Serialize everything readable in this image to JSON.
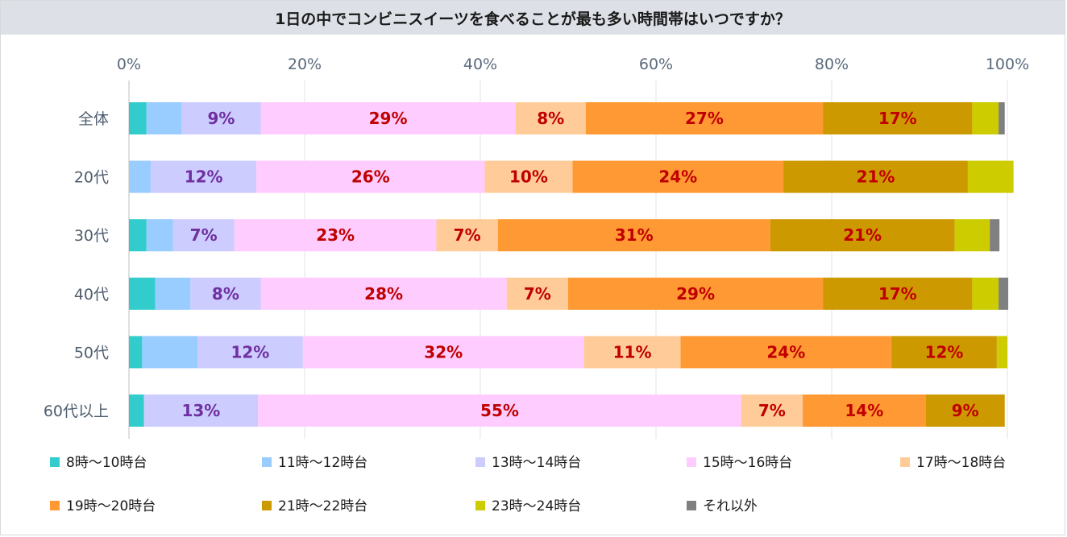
{
  "chart_data": {
    "type": "bar",
    "orientation": "horizontal-stacked-100",
    "title": "1日の中でコンビニスイーツを食べることが最も多い時間帯はいつですか？",
    "xlim": [
      0,
      100
    ],
    "ticks": [
      "0%",
      "20%",
      "40%",
      "60%",
      "80%",
      "100%"
    ],
    "categories": [
      "全体",
      "20代",
      "30代",
      "40代",
      "50代",
      "60代以上"
    ],
    "series": [
      {
        "name": "8時～10時台",
        "color": "#33cccc",
        "values": [
          2,
          0,
          2,
          3,
          1.5,
          1.7
        ],
        "labels": [
          "",
          "",
          "",
          "",
          "",
          ""
        ],
        "label_color": ""
      },
      {
        "name": "11時～12時台",
        "color": "#99ccff",
        "values": [
          4,
          2.5,
          3,
          4,
          6.3,
          0
        ],
        "labels": [
          "",
          "",
          "",
          "",
          "",
          ""
        ],
        "label_color": ""
      },
      {
        "name": "13時～14時台",
        "color": "#ccccff",
        "values": [
          9,
          12,
          7,
          8,
          12,
          13
        ],
        "labels": [
          "9%",
          "12%",
          "7%",
          "8%",
          "12%",
          "13%"
        ],
        "label_color": "#7030a0"
      },
      {
        "name": "15時～16時台",
        "color": "#ffccff",
        "values": [
          29,
          26,
          23,
          28,
          32,
          55
        ],
        "labels": [
          "29%",
          "26%",
          "23%",
          "28%",
          "32%",
          "55%"
        ],
        "label_color": "#c00000"
      },
      {
        "name": "17時～18時台",
        "color": "#ffcc99",
        "values": [
          8,
          10,
          7,
          7,
          11,
          7
        ],
        "labels": [
          "8%",
          "10%",
          "7%",
          "7%",
          "11%",
          "7%"
        ],
        "label_color": "#c00000"
      },
      {
        "name": "19時～20時台",
        "color": "#ff9933",
        "values": [
          27,
          24,
          31,
          29,
          24,
          14
        ],
        "labels": [
          "27%",
          "24%",
          "31%",
          "29%",
          "24%",
          "14%"
        ],
        "label_color": "#c00000"
      },
      {
        "name": "21時～22時台",
        "color": "#cc9900",
        "values": [
          17,
          21,
          21,
          17,
          12,
          9
        ],
        "labels": [
          "17%",
          "21%",
          "21%",
          "17%",
          "12%",
          "9%"
        ],
        "label_color": "#c00000"
      },
      {
        "name": "23時～24時台",
        "color": "#cccc00",
        "values": [
          3,
          5.2,
          4,
          3,
          1.2,
          0
        ],
        "labels": [
          "",
          "",
          "",
          "",
          "",
          ""
        ],
        "label_color": ""
      },
      {
        "name": "それ以外",
        "color": "#808080",
        "values": [
          0.7,
          0,
          1.1,
          1.1,
          0,
          0
        ],
        "labels": [
          "",
          "",
          "",
          "",
          "",
          ""
        ],
        "label_color": ""
      }
    ],
    "grid": true,
    "legend": "bottom"
  }
}
